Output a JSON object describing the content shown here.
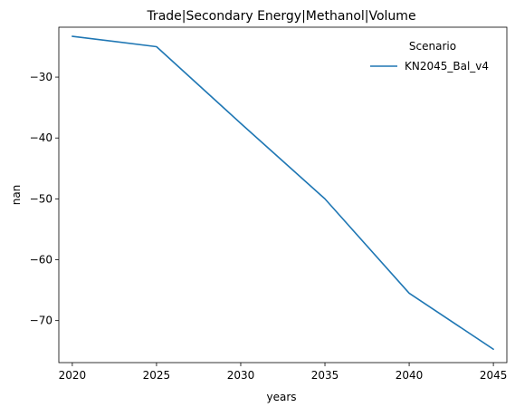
{
  "chart_data": {
    "type": "line",
    "title": "Trade|Secondary Energy|Methanol|Volume",
    "xlabel": "years",
    "ylabel": "nan",
    "x": [
      2020,
      2025,
      2030,
      2035,
      2040,
      2045
    ],
    "xticks": [
      2020,
      2025,
      2030,
      2035,
      2040,
      2045
    ],
    "xticklabels": [
      "2020",
      "2025",
      "2030",
      "2035",
      "2040",
      "2045"
    ],
    "yticks": [
      -30,
      -40,
      -50,
      -60,
      -70
    ],
    "yticklabels": [
      "−30",
      "−40",
      "−50",
      "−60",
      "−70"
    ],
    "xlim": [
      2019.2,
      2045.8
    ],
    "ylim": [
      -76.9,
      -21.8
    ],
    "grid": false,
    "legend": {
      "title": "Scenario",
      "placement": "top-right"
    },
    "series": [
      {
        "name": "KN2045_Bal_v4",
        "color": "#1f77b4",
        "values": [
          -23.3,
          -25.0,
          -37.6,
          -50.0,
          -65.5,
          -74.7
        ]
      }
    ]
  }
}
